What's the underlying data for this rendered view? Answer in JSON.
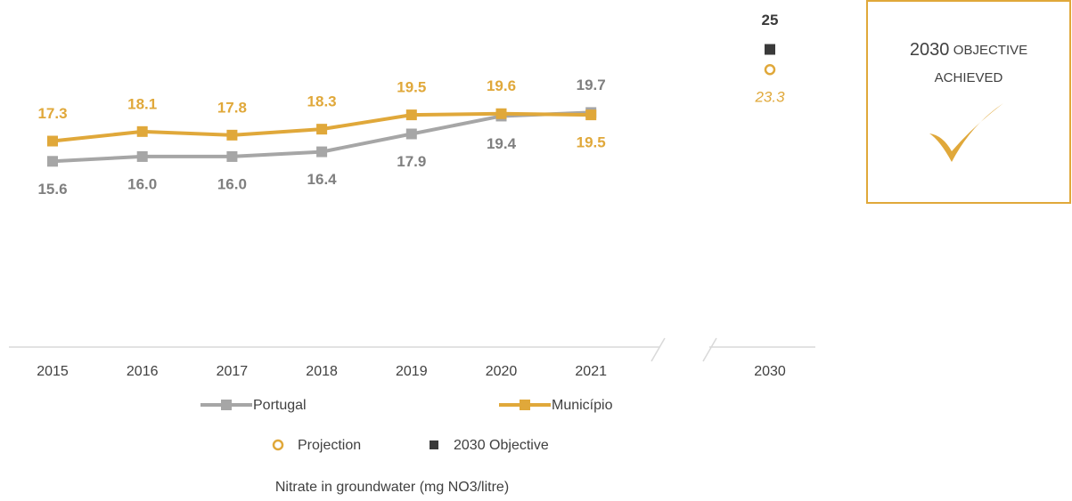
{
  "chart_data": {
    "type": "line",
    "title": "Nitrate in groundwater (mg NO3/litre)",
    "categories": [
      "2015",
      "2016",
      "2017",
      "2018",
      "2019",
      "2020",
      "2021",
      "2030"
    ],
    "ylim": [
      0,
      29
    ],
    "series": [
      {
        "name": "Portugal",
        "color": "#a6a6a6",
        "marker": "square-line",
        "values": [
          15.6,
          16.0,
          16.0,
          16.4,
          17.9,
          19.4,
          19.7,
          null
        ],
        "value_labels": [
          "15.6",
          "16.0",
          "16.0",
          "16.4",
          "17.9",
          "19.4",
          "19.7",
          null
        ]
      },
      {
        "name": "Município",
        "color": "#e0a83a",
        "marker": "square-line",
        "values": [
          17.3,
          18.1,
          17.8,
          18.3,
          19.5,
          19.6,
          19.5,
          null
        ],
        "value_labels": [
          "17.3",
          "18.1",
          "17.8",
          "18.3",
          "19.5",
          "19.6",
          "19.5",
          null
        ]
      },
      {
        "name": "Projection",
        "color": "#e0a83a",
        "marker": "circle",
        "values": [
          null,
          null,
          null,
          null,
          null,
          null,
          null,
          23.3
        ]
      },
      {
        "name": "2030 Objective",
        "color": "#3a3a3a",
        "marker": "square",
        "values": [
          null,
          null,
          null,
          null,
          null,
          null,
          null,
          25
        ]
      }
    ],
    "status": [
      "2030",
      "OBJECTIVE",
      "ACHIEVED"
    ]
  }
}
